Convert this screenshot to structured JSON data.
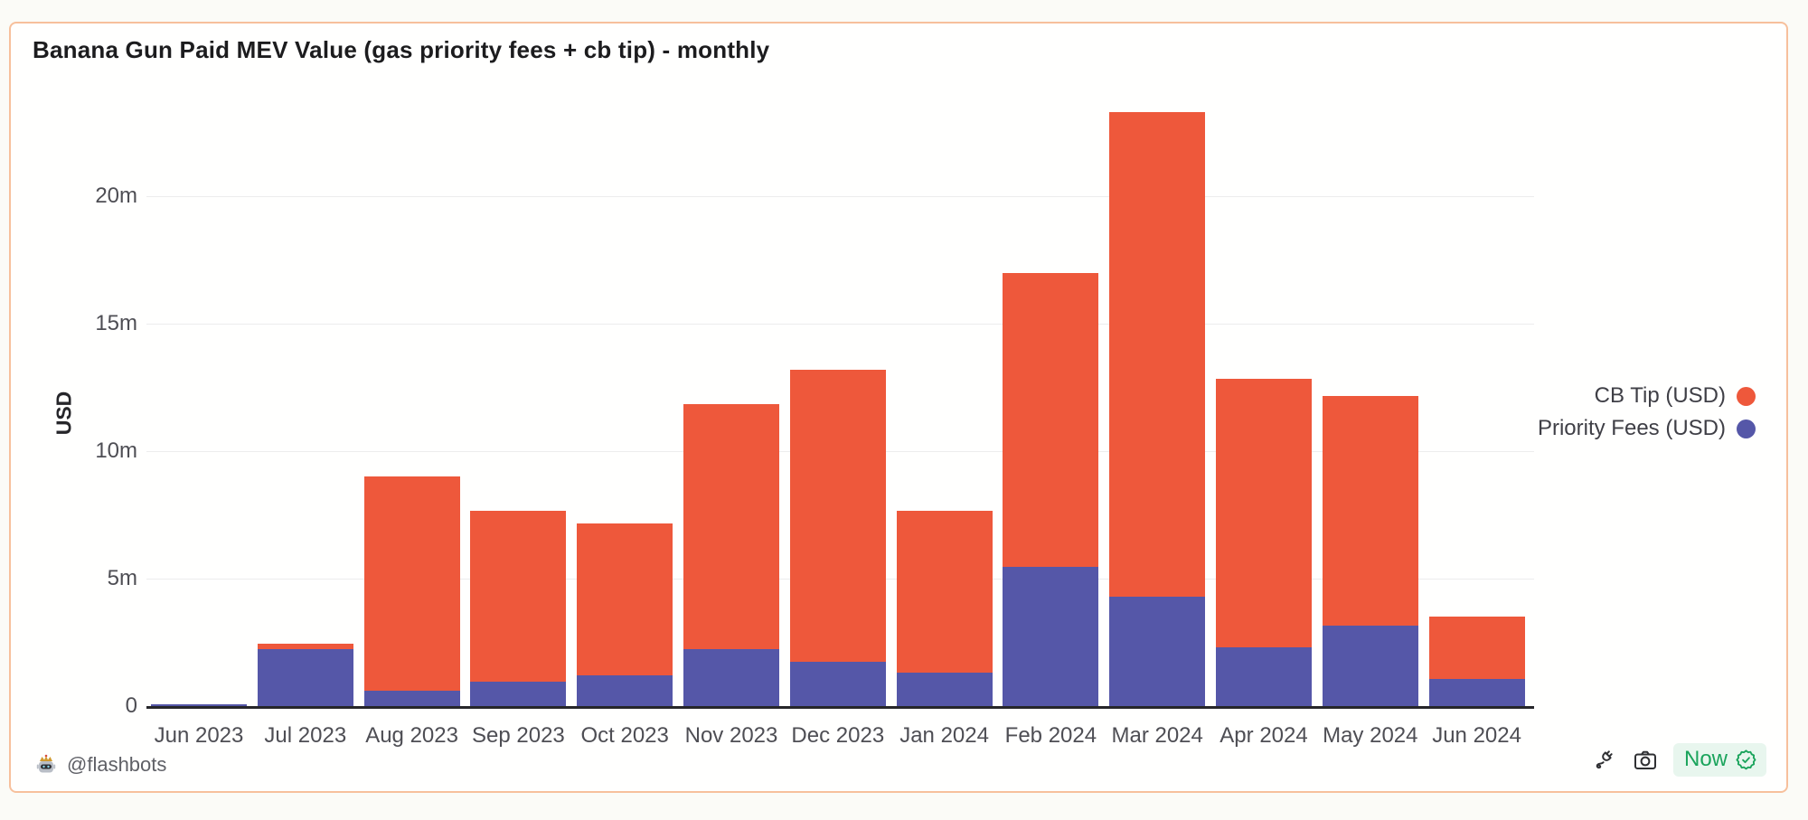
{
  "header": {
    "title": "Banana Gun Paid MEV Value (gas priority fees + cb tip) - monthly"
  },
  "chart_data": {
    "type": "bar",
    "stacked": true,
    "title": "Banana Gun Paid MEV Value (gas priority fees + cb tip) - monthly",
    "xlabel": "",
    "ylabel": "USD",
    "value_unit": "millions of USD",
    "categories": [
      "Jun 2023",
      "Jul 2023",
      "Aug 2023",
      "Sep 2023",
      "Oct 2023",
      "Nov 2023",
      "Dec 2023",
      "Jan 2024",
      "Feb 2024",
      "Mar 2024",
      "Apr 2024",
      "May 2024",
      "Jun 2024"
    ],
    "series": [
      {
        "name": "Priority Fees (USD)",
        "color_key": "priority_fees",
        "stack_order": "bottom",
        "values_millions": [
          0.06,
          2.25,
          0.6,
          0.95,
          1.2,
          2.25,
          1.75,
          1.3,
          5.45,
          4.3,
          2.3,
          3.15,
          1.05
        ]
      },
      {
        "name": "CB Tip (USD)",
        "color_key": "cb_tip",
        "stack_order": "top",
        "values_millions": [
          0.02,
          0.2,
          8.4,
          6.7,
          5.95,
          9.6,
          11.45,
          6.35,
          11.55,
          19.0,
          10.55,
          9.0,
          2.45
        ]
      }
    ],
    "y_ticks": [
      {
        "value": 0,
        "label": "0"
      },
      {
        "value": 5,
        "label": "5m"
      },
      {
        "value": 10,
        "label": "10m"
      },
      {
        "value": 15,
        "label": "15m"
      },
      {
        "value": 20,
        "label": "20m"
      }
    ],
    "ylim": [
      0,
      24
    ],
    "grid": "horizontal",
    "legend_position": "right"
  },
  "legend": {
    "items": [
      {
        "label": "CB Tip (USD)",
        "color_key": "cb_tip"
      },
      {
        "label": "Priority Fees (USD)",
        "color_key": "priority_fees"
      }
    ]
  },
  "footer": {
    "attribution": "@flashbots",
    "robot_icon": "robot-crown-icon",
    "actions": [
      {
        "icon": "plug-icon"
      },
      {
        "icon": "camera-icon"
      }
    ],
    "freshness": {
      "label": "Now",
      "icon": "verified-seal-icon"
    }
  },
  "colors": {
    "cb_tip": "#ee583b",
    "priority_fees": "#5557a8",
    "card_border": "#f7c09c",
    "grid": "#ededed",
    "axis": "#26262a",
    "tick_text": "#4e4e54",
    "title_text": "#1c1c1e",
    "legend_text": "#3f3f46",
    "footer_text": "#5f6066",
    "badge_green": "#1ba45c",
    "badge_bg": "#e8f6ee",
    "icon_dark": "#2f3033"
  }
}
